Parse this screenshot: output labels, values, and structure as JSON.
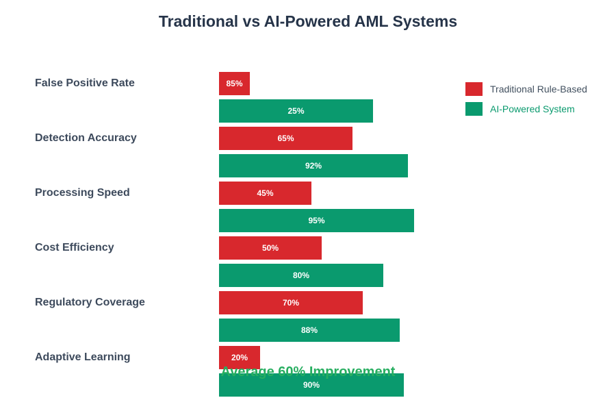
{
  "chart_data": {
    "type": "bar",
    "orientation": "horizontal",
    "title": "Traditional vs AI-Powered AML Systems",
    "title_color": "#263449",
    "categories": [
      "False Positive Rate",
      "Detection Accuracy",
      "Processing Speed",
      "Cost Efficiency",
      "Regulatory Coverage",
      "Adaptive Learning"
    ],
    "series": [
      {
        "name": "Traditional Rule-Based",
        "color": "#d8282d",
        "values": [
          85,
          65,
          45,
          50,
          70,
          20
        ],
        "value_labels": [
          "85%",
          "65%",
          "45%",
          "50%",
          "70%",
          "20%"
        ],
        "drawn_bar_lengths_pct": [
          15,
          65,
          45,
          50,
          70,
          20
        ]
      },
      {
        "name": "AI-Powered System",
        "color": "#0a9a6e",
        "values": [
          25,
          92,
          95,
          80,
          88,
          90
        ],
        "value_labels": [
          "25%",
          "92%",
          "95%",
          "80%",
          "88%",
          "90%"
        ],
        "drawn_bar_lengths_pct": [
          75,
          92,
          95,
          80,
          88,
          90
        ]
      }
    ],
    "xlim": [
      0,
      100
    ],
    "grid": false,
    "legend_position": "right",
    "annotation": "Average 60% Improvement",
    "annotation_color": "#27ae60"
  },
  "legend": {
    "items": [
      {
        "label": "Traditional Rule-Based",
        "swatch_color": "#d8282d",
        "text_color": "#42505f"
      },
      {
        "label": "AI-Powered System",
        "swatch_color": "#0a9a6e",
        "text_color": "#0a9a6e"
      }
    ]
  }
}
